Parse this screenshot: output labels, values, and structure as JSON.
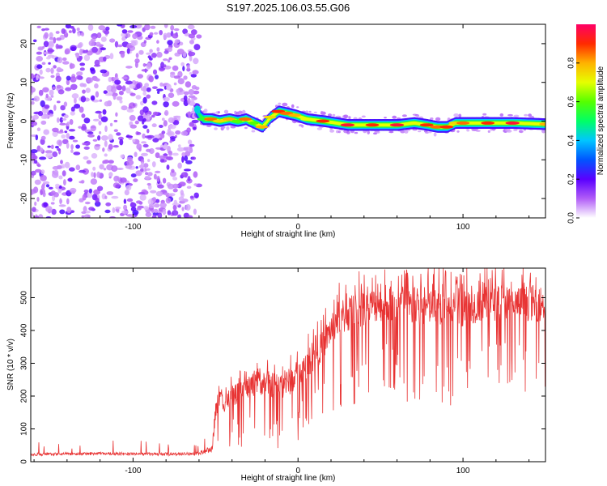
{
  "figure_title": "S197.2025.106.03.55.G06",
  "chart_data": [
    {
      "type": "heatmap",
      "xlabel": "Height of straight line (km)",
      "ylabel": "Frequency (Hz)",
      "xlim": [
        -162,
        150
      ],
      "ylim": [
        -25,
        25
      ],
      "xticks": [
        -100,
        0,
        100
      ],
      "yticks": [
        -20,
        -10,
        0,
        10,
        20
      ],
      "colorbar": {
        "label": "Normalized spectral amplitude",
        "range": [
          0,
          1
        ],
        "ticks": [
          0.0,
          0.2,
          0.4,
          0.6,
          0.8
        ]
      },
      "noise_region": {
        "x_range": [
          -162,
          -60
        ]
      },
      "ridge": {
        "x": [
          -62,
          -58,
          -53,
          -48,
          -42,
          -37,
          -32,
          -27,
          -22,
          -17,
          -12,
          -7,
          -2,
          5,
          15,
          30,
          45,
          60,
          70,
          78,
          84,
          90,
          95,
          100,
          115,
          130,
          150
        ],
        "freq": [
          2.5,
          0.5,
          0.5,
          0.0,
          0.5,
          0.0,
          0.5,
          -0.5,
          -1.5,
          1.0,
          2.5,
          2.0,
          1.5,
          0.5,
          0.0,
          -1.0,
          -1.0,
          -1.0,
          -0.5,
          -1.0,
          -1.5,
          -1.5,
          -0.5,
          -0.5,
          -0.5,
          -0.5,
          -0.8
        ],
        "amplitude": [
          0.35,
          0.55,
          0.85,
          0.75,
          0.8,
          0.6,
          0.85,
          0.6,
          0.8,
          0.75,
          0.9,
          0.85,
          0.8,
          0.7,
          0.9,
          0.95,
          0.9,
          0.95,
          0.7,
          0.9,
          0.85,
          0.9,
          0.75,
          0.85,
          0.9,
          0.95,
          0.8
        ]
      }
    },
    {
      "type": "line",
      "xlabel": "Height of straight line (km)",
      "ylabel": "SNR (10 * v/v)",
      "xlim": [
        -162,
        150
      ],
      "ylim": [
        0,
        590
      ],
      "xticks": [
        -100,
        0,
        100
      ],
      "yticks": [
        0,
        100,
        200,
        300,
        400,
        500
      ],
      "color": "#e83333",
      "series_envelope": {
        "x": [
          -162,
          -120,
          -80,
          -60,
          -52,
          -50,
          -48,
          -45,
          -40,
          -35,
          -30,
          -25,
          -20,
          -15,
          -10,
          -5,
          0,
          5,
          10,
          15,
          20,
          25,
          30,
          40,
          50,
          60,
          70,
          80,
          90,
          100,
          110,
          120,
          130,
          140,
          150
        ],
        "mean": [
          22,
          25,
          23,
          25,
          40,
          150,
          190,
          180,
          200,
          210,
          225,
          240,
          240,
          235,
          230,
          245,
          260,
          295,
          320,
          355,
          405,
          440,
          450,
          470,
          480,
          475,
          470,
          470,
          475,
          470,
          480,
          485,
          480,
          485,
          480
        ],
        "spread": [
          8,
          8,
          8,
          8,
          20,
          60,
          60,
          55,
          55,
          60,
          60,
          65,
          70,
          70,
          75,
          75,
          75,
          75,
          80,
          80,
          90,
          100,
          110,
          100,
          95,
          100,
          110,
          105,
          110,
          105,
          100,
          100,
          95,
          100,
          100
        ]
      }
    }
  ]
}
